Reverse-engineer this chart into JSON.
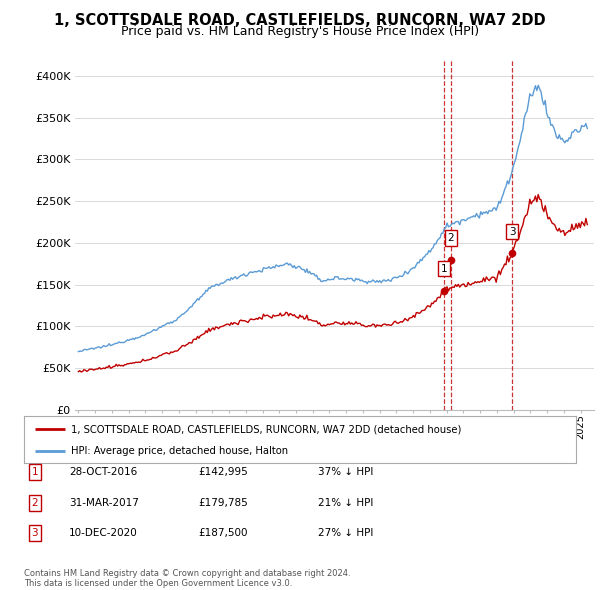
{
  "title": "1, SCOTTSDALE ROAD, CASTLEFIELDS, RUNCORN, WA7 2DD",
  "subtitle": "Price paid vs. HM Land Registry's House Price Index (HPI)",
  "title_fontsize": 10.5,
  "subtitle_fontsize": 9,
  "ylim": [
    0,
    420000
  ],
  "yticks": [
    0,
    50000,
    100000,
    150000,
    200000,
    250000,
    300000,
    350000,
    400000
  ],
  "ytick_labels": [
    "£0",
    "£50K",
    "£100K",
    "£150K",
    "£200K",
    "£250K",
    "£300K",
    "£350K",
    "£400K"
  ],
  "xlim_start": 1994.8,
  "xlim_end": 2025.8,
  "hpi_color": "#5b9bd5",
  "price_color": "#c00000",
  "sale_points": [
    {
      "year": 2016.83,
      "price": 142995,
      "label": "1"
    },
    {
      "year": 2017.25,
      "price": 179785,
      "label": "2"
    },
    {
      "year": 2020.92,
      "price": 187500,
      "label": "3"
    }
  ],
  "table_rows": [
    {
      "num": "1",
      "date": "28-OCT-2016",
      "price": "£142,995",
      "pct": "37% ↓ HPI"
    },
    {
      "num": "2",
      "date": "31-MAR-2017",
      "price": "£179,785",
      "pct": "21% ↓ HPI"
    },
    {
      "num": "3",
      "date": "10-DEC-2020",
      "price": "£187,500",
      "pct": "27% ↓ HPI"
    }
  ],
  "legend_entries": [
    "1, SCOTTSDALE ROAD, CASTLEFIELDS, RUNCORN, WA7 2DD (detached house)",
    "HPI: Average price, detached house, Halton"
  ],
  "footnote": "Contains HM Land Registry data © Crown copyright and database right 2024.\nThis data is licensed under the Open Government Licence v3.0.",
  "vline_color": "#c00000",
  "background_color": "#ffffff",
  "grid_color": "#d9d9d9"
}
